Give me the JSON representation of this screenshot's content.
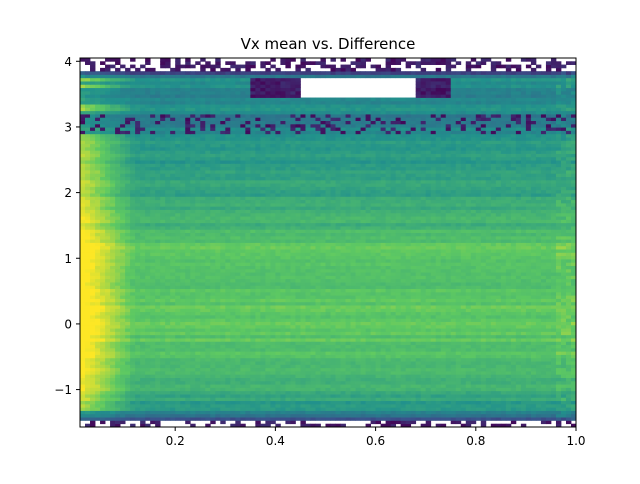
{
  "chart_data": {
    "type": "heatmap",
    "title": "Vx mean vs. Difference",
    "xlabel": "",
    "ylabel": "",
    "xlim": [
      0.01,
      1.0
    ],
    "ylim": [
      -1.57,
      4.05
    ],
    "x_ticks": [
      0.2,
      0.4,
      0.6,
      0.8,
      1.0
    ],
    "x_tick_labels": [
      "0.2",
      "0.4",
      "0.6",
      "0.8",
      "1.0"
    ],
    "y_ticks": [
      -1,
      0,
      1,
      2,
      3,
      4
    ],
    "y_tick_labels": [
      "−1",
      "0",
      "1",
      "2",
      "3",
      "4"
    ],
    "colormap": "viridis",
    "grid": false,
    "legend": "none",
    "density_profile": {
      "y": [
        -1.57,
        -1.45,
        -1.3,
        -1.1,
        -0.9,
        -0.6,
        -0.3,
        0.0,
        0.3,
        0.6,
        0.9,
        1.2,
        1.4,
        1.7,
        2.0,
        2.3,
        2.6,
        2.9,
        3.1,
        3.3,
        3.5,
        3.75,
        3.85,
        4.05
      ],
      "level": [
        0.05,
        0.25,
        0.5,
        0.6,
        0.66,
        0.7,
        0.72,
        0.74,
        0.74,
        0.72,
        0.72,
        0.74,
        0.66,
        0.62,
        0.58,
        0.56,
        0.54,
        0.5,
        0.38,
        0.5,
        0.45,
        0.5,
        0.08,
        0.0
      ],
      "note_x_decay": [
        0.0,
        1.0
      ]
    },
    "x_edge_brightness": 0.35
  }
}
